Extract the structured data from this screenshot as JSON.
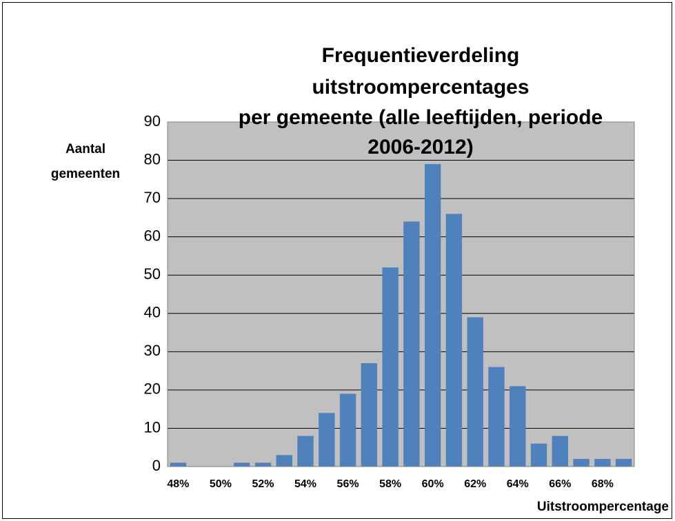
{
  "chart_data": {
    "type": "bar",
    "title": [
      "Frequentieverdeling",
      "uitstroompercentages",
      "per gemeente (alle leeftijden, periode",
      "2006-2012)"
    ],
    "y_label": [
      "Aantal",
      "gemeenten"
    ],
    "x_label": "Uitstroompercentage",
    "categories": [
      "48%",
      null,
      "50%",
      null,
      "52%",
      null,
      "54%",
      null,
      "56%",
      null,
      "58%",
      null,
      "60%",
      null,
      "62%",
      null,
      "64%",
      null,
      "66%",
      null,
      "68%",
      null
    ],
    "values": [
      1,
      0,
      0,
      1,
      1,
      3,
      8,
      14,
      19,
      27,
      52,
      64,
      79,
      66,
      39,
      26,
      21,
      6,
      8,
      2,
      2,
      2
    ],
    "color": "#4f81bd",
    "ylim": [
      0,
      90
    ],
    "yticks": [
      0,
      10,
      20,
      30,
      40,
      50,
      60,
      70,
      80,
      90
    ],
    "grid": true
  }
}
